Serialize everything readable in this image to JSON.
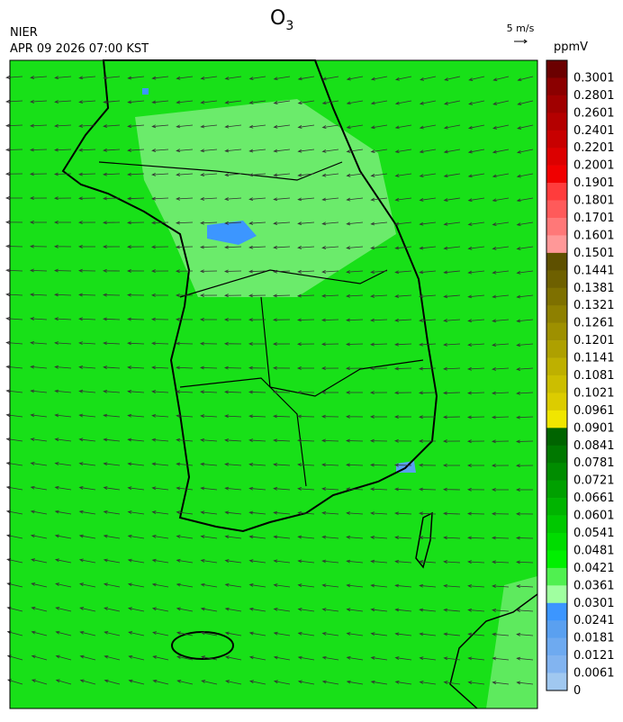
{
  "header": {
    "title": {
      "text": "O",
      "subscript": "3"
    },
    "agency": "NIER",
    "datetime": "APR 09 2026 07:00 KST",
    "wind_scale": "5 m/s"
  },
  "colorbar": {
    "unit": "ppmV",
    "labels": [
      "0.3001",
      "0.2801",
      "0.2601",
      "0.2401",
      "0.2201",
      "0.2001",
      "0.1901",
      "0.1801",
      "0.1701",
      "0.1601",
      "0.1501",
      "0.1441",
      "0.1381",
      "0.1321",
      "0.1261",
      "0.1201",
      "0.1141",
      "0.1081",
      "0.1021",
      "0.0961",
      "0.0901",
      "0.0841",
      "0.0781",
      "0.0721",
      "0.0661",
      "0.0601",
      "0.0541",
      "0.0481",
      "0.0421",
      "0.0361",
      "0.0301",
      "0.0241",
      "0.0181",
      "0.0121",
      "0.0061",
      "0"
    ],
    "colors": [
      "#6b0000",
      "#8b0000",
      "#a00000",
      "#b40000",
      "#c80000",
      "#dc0000",
      "#f00000",
      "#ff3c3c",
      "#ff5a5a",
      "#ff7878",
      "#ff9898",
      "#5e5000",
      "#6e6000",
      "#7e7000",
      "#8e8000",
      "#9e9000",
      "#aea000",
      "#beb000",
      "#ccbe00",
      "#dccc00",
      "#f0e600",
      "#006400",
      "#007800",
      "#008c00",
      "#00a000",
      "#00b400",
      "#00c800",
      "#00dc00",
      "#00f000",
      "#50f050",
      "#a0ffa0",
      "#3c96ff",
      "#5aa0f0",
      "#6eaaf0",
      "#82b4f0",
      "#a0c8f0"
    ]
  }
}
